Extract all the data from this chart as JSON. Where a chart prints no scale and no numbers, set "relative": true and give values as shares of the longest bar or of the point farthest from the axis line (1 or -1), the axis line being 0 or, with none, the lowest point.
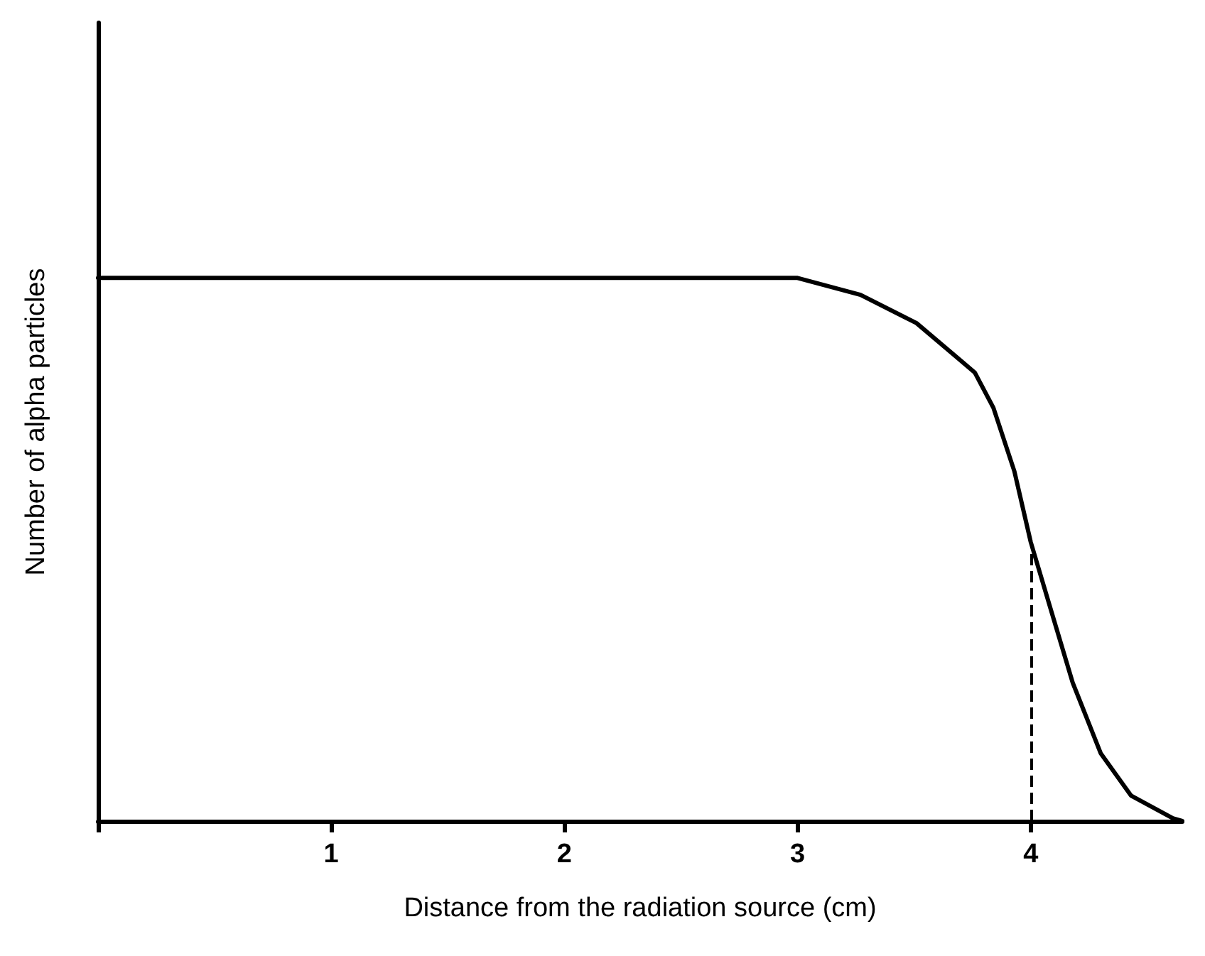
{
  "chart_data": {
    "type": "line",
    "relative": true,
    "xlabel": "Distance from the radiation source (cm)",
    "ylabel": "Number of alpha particles",
    "x": [
      0,
      1,
      2,
      3,
      3.27,
      3.51,
      3.76,
      3.84,
      3.93,
      4.0,
      4.09,
      4.18,
      4.3,
      4.43,
      4.61,
      4.65
    ],
    "series": [
      {
        "color": "#000000",
        "values": [
          1,
          1,
          1,
          1,
          0.969,
          0.917,
          0.826,
          0.761,
          0.644,
          0.514,
          0.384,
          0.255,
          0.125,
          0.047,
          0.005,
          0
        ]
      }
    ],
    "xlim": [
      0,
      4.65
    ],
    "xticks": [
      {
        "value": 0,
        "label": null
      },
      1,
      2,
      3,
      4
    ],
    "ref_lines": [
      {
        "axis": "x",
        "value": 4,
        "line_style": "dashed"
      }
    ]
  }
}
